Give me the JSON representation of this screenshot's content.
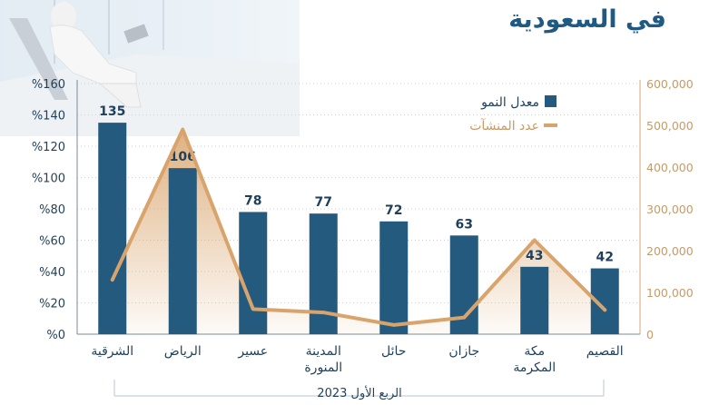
{
  "title_line": "في السعودية",
  "chart_data": {
    "type": "bar",
    "categories": [
      "الشرقية",
      "الرياض",
      "عسير",
      "المدينة المنورة",
      "حائل",
      "جازان",
      "مكة المكرمة",
      "القصيم"
    ],
    "category_lines": [
      [
        "الشرقية"
      ],
      [
        "الرياض"
      ],
      [
        "عسير"
      ],
      [
        "المدينة",
        "المنورة"
      ],
      [
        "حائل"
      ],
      [
        "جازان"
      ],
      [
        "مكة",
        "المكرمة"
      ],
      [
        "القصيم"
      ]
    ],
    "series": [
      {
        "name": "معدل النمو",
        "type": "bar",
        "axis": "left",
        "color": "#235a7e",
        "values": [
          135,
          106,
          78,
          77,
          72,
          63,
          43,
          42
        ]
      },
      {
        "name": "عدد المنشآت",
        "type": "area-line",
        "axis": "right",
        "color": "#d9a46c",
        "values": [
          130000,
          490000,
          60000,
          52000,
          22000,
          40000,
          225000,
          58000
        ]
      }
    ],
    "left_axis": {
      "min": 0,
      "max": 160,
      "ticks": [
        "%0",
        "%20",
        "%40",
        "%60",
        "%80",
        "%100",
        "%120",
        "%140",
        "%160"
      ]
    },
    "right_axis": {
      "min": 0,
      "max": 600000,
      "ticks": [
        "0",
        "100,000",
        "200,000",
        "300,000",
        "400,000",
        "500,000",
        "600,000"
      ]
    },
    "xlabel": "الربع الأول 2023",
    "legend_position": "top-right",
    "grid": true
  },
  "colors": {
    "bar": "#235a7e",
    "line": "#d9a46c",
    "axis_text": "#1f3f5a",
    "right_axis_text": "#c99a64"
  }
}
